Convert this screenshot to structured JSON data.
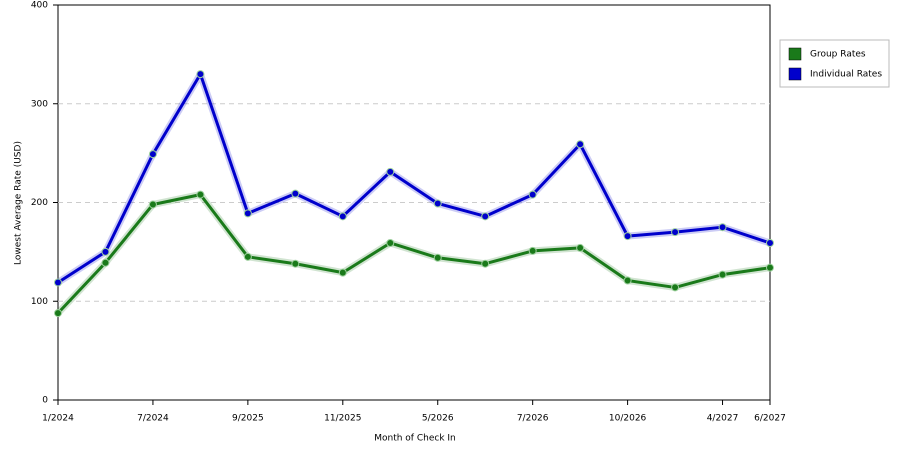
{
  "chart_data": {
    "type": "line",
    "x_label": "Month of Check In",
    "y_label": "Lowest Average Rate (USD)",
    "categories": [
      "1/2024",
      null,
      "7/2024",
      null,
      "9/2025",
      null,
      "11/2025",
      null,
      "5/2026",
      null,
      "7/2026",
      null,
      "10/2026",
      null,
      "4/2027",
      "6/2027"
    ],
    "series": [
      {
        "name": "Group Rates",
        "color": "#1a7a1a",
        "values": [
          88,
          139,
          198,
          208,
          145,
          138,
          129,
          159,
          144,
          138,
          151,
          154,
          121,
          114,
          127,
          134
        ]
      },
      {
        "name": "Individual Rates",
        "color": "#0000cc",
        "values": [
          119,
          150,
          249,
          330,
          189,
          209,
          186,
          231,
          199,
          186,
          208,
          259,
          166,
          170,
          175,
          159
        ]
      }
    ],
    "ylim": [
      0,
      400
    ],
    "yticks": [
      0,
      100,
      200,
      300,
      400
    ],
    "grid": true,
    "legend": "right"
  }
}
